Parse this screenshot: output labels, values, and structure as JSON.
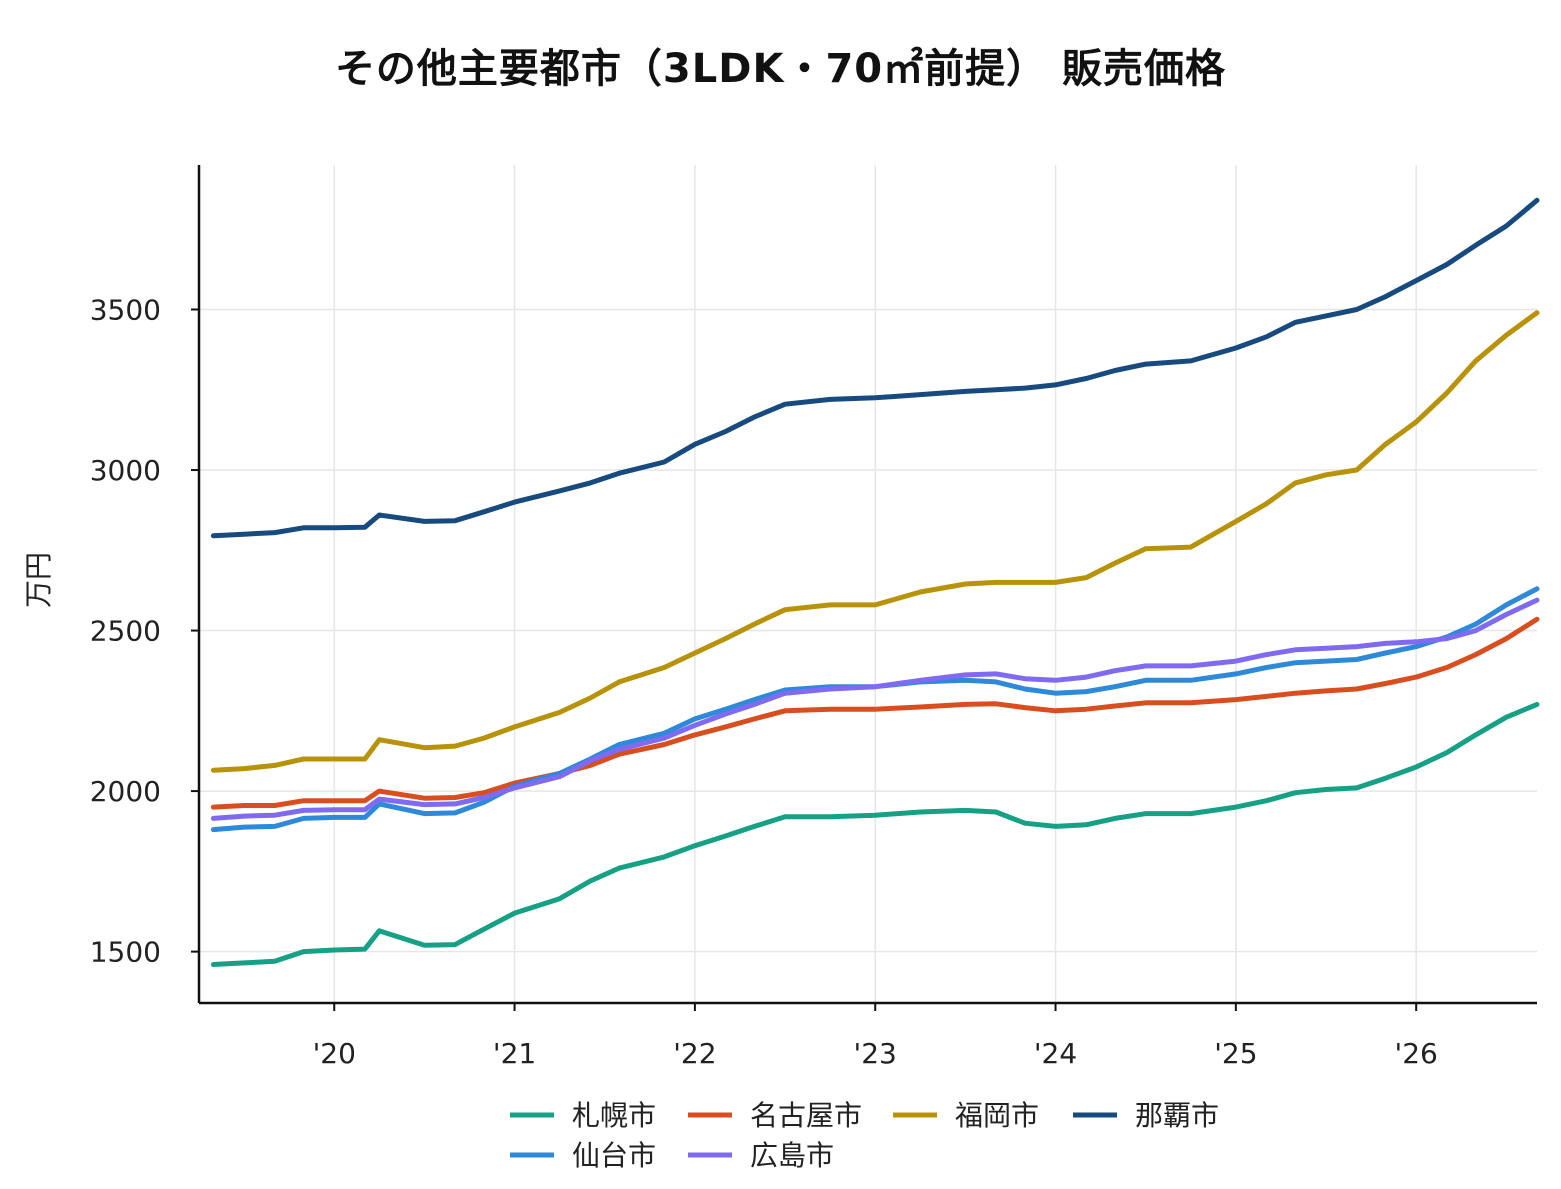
{
  "chart_data": {
    "type": "line",
    "title": "その他主要都市（3LDK・70㎡前提） 販売価格",
    "xlabel": "",
    "ylabel": "万円",
    "x_tick_labels": [
      "'20",
      "'21",
      "'22",
      "'23",
      "'24",
      "'25",
      "'26"
    ],
    "x_tick_years": [
      2020,
      2021,
      2022,
      2023,
      2024,
      2025,
      2026
    ],
    "xlim": [
      2019.25,
      2026.67
    ],
    "y_ticks": [
      1500,
      2000,
      2500,
      3000,
      3500
    ],
    "ylim": [
      1340,
      3950
    ],
    "grid": true,
    "legend_position": "bottom-center",
    "series": [
      {
        "name": "札幌市",
        "color": "#16a085",
        "points": [
          [
            2019.33,
            1460
          ],
          [
            2019.5,
            1465
          ],
          [
            2019.67,
            1470
          ],
          [
            2019.83,
            1500
          ],
          [
            2020.0,
            1505
          ],
          [
            2020.17,
            1508
          ],
          [
            2020.25,
            1565
          ],
          [
            2020.5,
            1520
          ],
          [
            2020.67,
            1522
          ],
          [
            2020.83,
            1570
          ],
          [
            2021.0,
            1620
          ],
          [
            2021.25,
            1665
          ],
          [
            2021.42,
            1720
          ],
          [
            2021.58,
            1760
          ],
          [
            2021.83,
            1795
          ],
          [
            2022.0,
            1830
          ],
          [
            2022.17,
            1860
          ],
          [
            2022.33,
            1890
          ],
          [
            2022.5,
            1920
          ],
          [
            2022.75,
            1920
          ],
          [
            2023.0,
            1925
          ],
          [
            2023.25,
            1935
          ],
          [
            2023.5,
            1940
          ],
          [
            2023.67,
            1935
          ],
          [
            2023.83,
            1900
          ],
          [
            2024.0,
            1890
          ],
          [
            2024.17,
            1895
          ],
          [
            2024.33,
            1915
          ],
          [
            2024.5,
            1930
          ],
          [
            2024.75,
            1930
          ],
          [
            2025.0,
            1950
          ],
          [
            2025.17,
            1970
          ],
          [
            2025.33,
            1995
          ],
          [
            2025.5,
            2005
          ],
          [
            2025.67,
            2010
          ],
          [
            2025.83,
            2040
          ],
          [
            2026.0,
            2075
          ],
          [
            2026.17,
            2120
          ],
          [
            2026.33,
            2175
          ],
          [
            2026.5,
            2230
          ],
          [
            2026.67,
            2270
          ]
        ]
      },
      {
        "name": "名古屋市",
        "color": "#d94e1f",
        "points": [
          [
            2019.33,
            1950
          ],
          [
            2019.5,
            1955
          ],
          [
            2019.67,
            1955
          ],
          [
            2019.83,
            1970
          ],
          [
            2020.0,
            1970
          ],
          [
            2020.17,
            1970
          ],
          [
            2020.25,
            2000
          ],
          [
            2020.5,
            1978
          ],
          [
            2020.67,
            1980
          ],
          [
            2020.83,
            1995
          ],
          [
            2021.0,
            2025
          ],
          [
            2021.25,
            2055
          ],
          [
            2021.42,
            2080
          ],
          [
            2021.58,
            2115
          ],
          [
            2021.83,
            2145
          ],
          [
            2022.0,
            2175
          ],
          [
            2022.17,
            2200
          ],
          [
            2022.33,
            2225
          ],
          [
            2022.5,
            2250
          ],
          [
            2022.75,
            2255
          ],
          [
            2023.0,
            2255
          ],
          [
            2023.25,
            2262
          ],
          [
            2023.5,
            2270
          ],
          [
            2023.67,
            2272
          ],
          [
            2023.83,
            2260
          ],
          [
            2024.0,
            2250
          ],
          [
            2024.17,
            2255
          ],
          [
            2024.33,
            2265
          ],
          [
            2024.5,
            2275
          ],
          [
            2024.75,
            2275
          ],
          [
            2025.0,
            2285
          ],
          [
            2025.17,
            2295
          ],
          [
            2025.33,
            2305
          ],
          [
            2025.5,
            2312
          ],
          [
            2025.67,
            2318
          ],
          [
            2025.83,
            2335
          ],
          [
            2026.0,
            2355
          ],
          [
            2026.17,
            2385
          ],
          [
            2026.33,
            2425
          ],
          [
            2026.5,
            2475
          ],
          [
            2026.67,
            2535
          ]
        ]
      },
      {
        "name": "福岡市",
        "color": "#b8930a",
        "points": [
          [
            2019.33,
            2065
          ],
          [
            2019.5,
            2070
          ],
          [
            2019.67,
            2080
          ],
          [
            2019.83,
            2100
          ],
          [
            2020.0,
            2100
          ],
          [
            2020.17,
            2100
          ],
          [
            2020.25,
            2160
          ],
          [
            2020.5,
            2135
          ],
          [
            2020.67,
            2140
          ],
          [
            2020.83,
            2165
          ],
          [
            2021.0,
            2200
          ],
          [
            2021.25,
            2245
          ],
          [
            2021.42,
            2290
          ],
          [
            2021.58,
            2340
          ],
          [
            2021.83,
            2385
          ],
          [
            2022.0,
            2430
          ],
          [
            2022.17,
            2475
          ],
          [
            2022.33,
            2520
          ],
          [
            2022.5,
            2565
          ],
          [
            2022.75,
            2580
          ],
          [
            2023.0,
            2580
          ],
          [
            2023.25,
            2620
          ],
          [
            2023.5,
            2645
          ],
          [
            2023.67,
            2650
          ],
          [
            2023.83,
            2650
          ],
          [
            2024.0,
            2650
          ],
          [
            2024.17,
            2665
          ],
          [
            2024.33,
            2710
          ],
          [
            2024.5,
            2755
          ],
          [
            2024.75,
            2760
          ],
          [
            2025.0,
            2840
          ],
          [
            2025.17,
            2895
          ],
          [
            2025.33,
            2960
          ],
          [
            2025.5,
            2985
          ],
          [
            2025.67,
            3000
          ],
          [
            2025.83,
            3080
          ],
          [
            2026.0,
            3150
          ],
          [
            2026.17,
            3240
          ],
          [
            2026.33,
            3340
          ],
          [
            2026.5,
            3420
          ],
          [
            2026.67,
            3490
          ]
        ]
      },
      {
        "name": "那覇市",
        "color": "#174a7e",
        "points": [
          [
            2019.33,
            2795
          ],
          [
            2019.5,
            2800
          ],
          [
            2019.67,
            2805
          ],
          [
            2019.83,
            2820
          ],
          [
            2020.0,
            2820
          ],
          [
            2020.17,
            2822
          ],
          [
            2020.25,
            2860
          ],
          [
            2020.5,
            2840
          ],
          [
            2020.67,
            2842
          ],
          [
            2020.83,
            2870
          ],
          [
            2021.0,
            2900
          ],
          [
            2021.25,
            2935
          ],
          [
            2021.42,
            2960
          ],
          [
            2021.58,
            2990
          ],
          [
            2021.83,
            3025
          ],
          [
            2022.0,
            3080
          ],
          [
            2022.17,
            3120
          ],
          [
            2022.33,
            3165
          ],
          [
            2022.5,
            3205
          ],
          [
            2022.75,
            3220
          ],
          [
            2023.0,
            3225
          ],
          [
            2023.25,
            3235
          ],
          [
            2023.5,
            3245
          ],
          [
            2023.67,
            3250
          ],
          [
            2023.83,
            3255
          ],
          [
            2024.0,
            3265
          ],
          [
            2024.17,
            3285
          ],
          [
            2024.33,
            3310
          ],
          [
            2024.5,
            3330
          ],
          [
            2024.75,
            3340
          ],
          [
            2025.0,
            3380
          ],
          [
            2025.17,
            3415
          ],
          [
            2025.33,
            3460
          ],
          [
            2025.5,
            3480
          ],
          [
            2025.67,
            3500
          ],
          [
            2025.83,
            3540
          ],
          [
            2026.0,
            3590
          ],
          [
            2026.17,
            3640
          ],
          [
            2026.33,
            3700
          ],
          [
            2026.5,
            3760
          ],
          [
            2026.67,
            3840
          ]
        ]
      },
      {
        "name": "仙台市",
        "color": "#2e8ad8",
        "points": [
          [
            2019.33,
            1880
          ],
          [
            2019.5,
            1888
          ],
          [
            2019.67,
            1890
          ],
          [
            2019.83,
            1915
          ],
          [
            2020.0,
            1918
          ],
          [
            2020.17,
            1918
          ],
          [
            2020.25,
            1960
          ],
          [
            2020.5,
            1930
          ],
          [
            2020.67,
            1932
          ],
          [
            2020.83,
            1965
          ],
          [
            2021.0,
            2015
          ],
          [
            2021.25,
            2055
          ],
          [
            2021.42,
            2100
          ],
          [
            2021.58,
            2145
          ],
          [
            2021.83,
            2180
          ],
          [
            2022.0,
            2225
          ],
          [
            2022.17,
            2255
          ],
          [
            2022.33,
            2285
          ],
          [
            2022.5,
            2315
          ],
          [
            2022.75,
            2325
          ],
          [
            2023.0,
            2325
          ],
          [
            2023.25,
            2340
          ],
          [
            2023.5,
            2345
          ],
          [
            2023.67,
            2340
          ],
          [
            2023.83,
            2318
          ],
          [
            2024.0,
            2305
          ],
          [
            2024.17,
            2310
          ],
          [
            2024.33,
            2325
          ],
          [
            2024.5,
            2345
          ],
          [
            2024.75,
            2345
          ],
          [
            2025.0,
            2365
          ],
          [
            2025.17,
            2385
          ],
          [
            2025.33,
            2400
          ],
          [
            2025.5,
            2405
          ],
          [
            2025.67,
            2410
          ],
          [
            2025.83,
            2430
          ],
          [
            2026.0,
            2450
          ],
          [
            2026.17,
            2480
          ],
          [
            2026.33,
            2520
          ],
          [
            2026.5,
            2580
          ],
          [
            2026.67,
            2630
          ]
        ]
      },
      {
        "name": "広島市",
        "color": "#7f6bf2",
        "points": [
          [
            2019.33,
            1915
          ],
          [
            2019.5,
            1922
          ],
          [
            2019.67,
            1925
          ],
          [
            2019.83,
            1940
          ],
          [
            2020.0,
            1942
          ],
          [
            2020.17,
            1942
          ],
          [
            2020.25,
            1975
          ],
          [
            2020.5,
            1958
          ],
          [
            2020.67,
            1960
          ],
          [
            2020.83,
            1980
          ],
          [
            2021.0,
            2010
          ],
          [
            2021.25,
            2045
          ],
          [
            2021.42,
            2095
          ],
          [
            2021.58,
            2130
          ],
          [
            2021.83,
            2165
          ],
          [
            2022.0,
            2205
          ],
          [
            2022.17,
            2240
          ],
          [
            2022.33,
            2270
          ],
          [
            2022.5,
            2305
          ],
          [
            2022.75,
            2318
          ],
          [
            2023.0,
            2325
          ],
          [
            2023.25,
            2345
          ],
          [
            2023.5,
            2362
          ],
          [
            2023.67,
            2365
          ],
          [
            2023.83,
            2350
          ],
          [
            2024.0,
            2345
          ],
          [
            2024.17,
            2355
          ],
          [
            2024.33,
            2375
          ],
          [
            2024.5,
            2390
          ],
          [
            2024.75,
            2390
          ],
          [
            2025.0,
            2405
          ],
          [
            2025.17,
            2425
          ],
          [
            2025.33,
            2440
          ],
          [
            2025.5,
            2445
          ],
          [
            2025.67,
            2450
          ],
          [
            2025.83,
            2460
          ],
          [
            2026.0,
            2465
          ],
          [
            2026.17,
            2475
          ],
          [
            2026.33,
            2500
          ],
          [
            2026.5,
            2550
          ],
          [
            2026.67,
            2595
          ]
        ]
      }
    ],
    "legend_rows": [
      [
        "札幌市",
        "名古屋市",
        "福岡市",
        "那覇市"
      ],
      [
        "仙台市",
        "広島市"
      ]
    ]
  }
}
